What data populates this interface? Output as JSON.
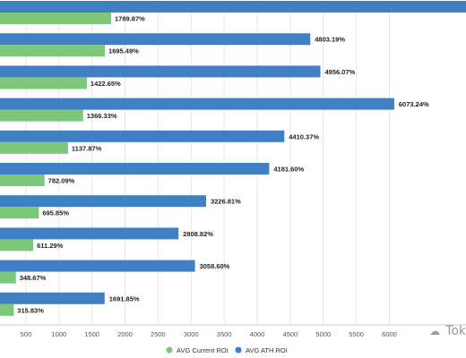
{
  "chart_data": {
    "type": "bar",
    "orientation": "horizontal",
    "x_ticks": [
      500,
      1000,
      1500,
      2000,
      2500,
      3000,
      3500,
      4000,
      4500,
      5000,
      5500,
      6000
    ],
    "series": [
      {
        "name": "AVG ATH ROI",
        "color": "#3f7fc4",
        "values": [
          null,
          4803.19,
          4956.07,
          6073.24,
          4410.37,
          4181.6,
          3226.81,
          2808.82,
          3058.6,
          1691.85
        ],
        "labels": [
          "",
          "4803.19%",
          "4956.07%",
          "6073.24%",
          "4410.37%",
          "4181.60%",
          "3226.81%",
          "2808.82%",
          "3058.60%",
          "1691.85%"
        ]
      },
      {
        "name": "AVG Current ROI",
        "color": "#7cc77a",
        "values": [
          1789.87,
          1695.49,
          1422.65,
          1366.33,
          1137.87,
          782.09,
          695.85,
          611.29,
          348.67,
          315.83
        ],
        "labels": [
          "1789.87%",
          "1695.49%",
          "1422.65%",
          "1366.33%",
          "1137.87%",
          "782.09%",
          "695.85%",
          "611.29%",
          "348.67%",
          "315.83%"
        ]
      }
    ],
    "legend": {
      "position": "bottom-center",
      "items": [
        {
          "label": "AVG Current ROI",
          "color": "#7cc77a"
        },
        {
          "label": "AVG ATH ROI",
          "color": "#3f7fc4"
        }
      ]
    },
    "grid": true
  },
  "watermark": {
    "text": "Tok"
  }
}
